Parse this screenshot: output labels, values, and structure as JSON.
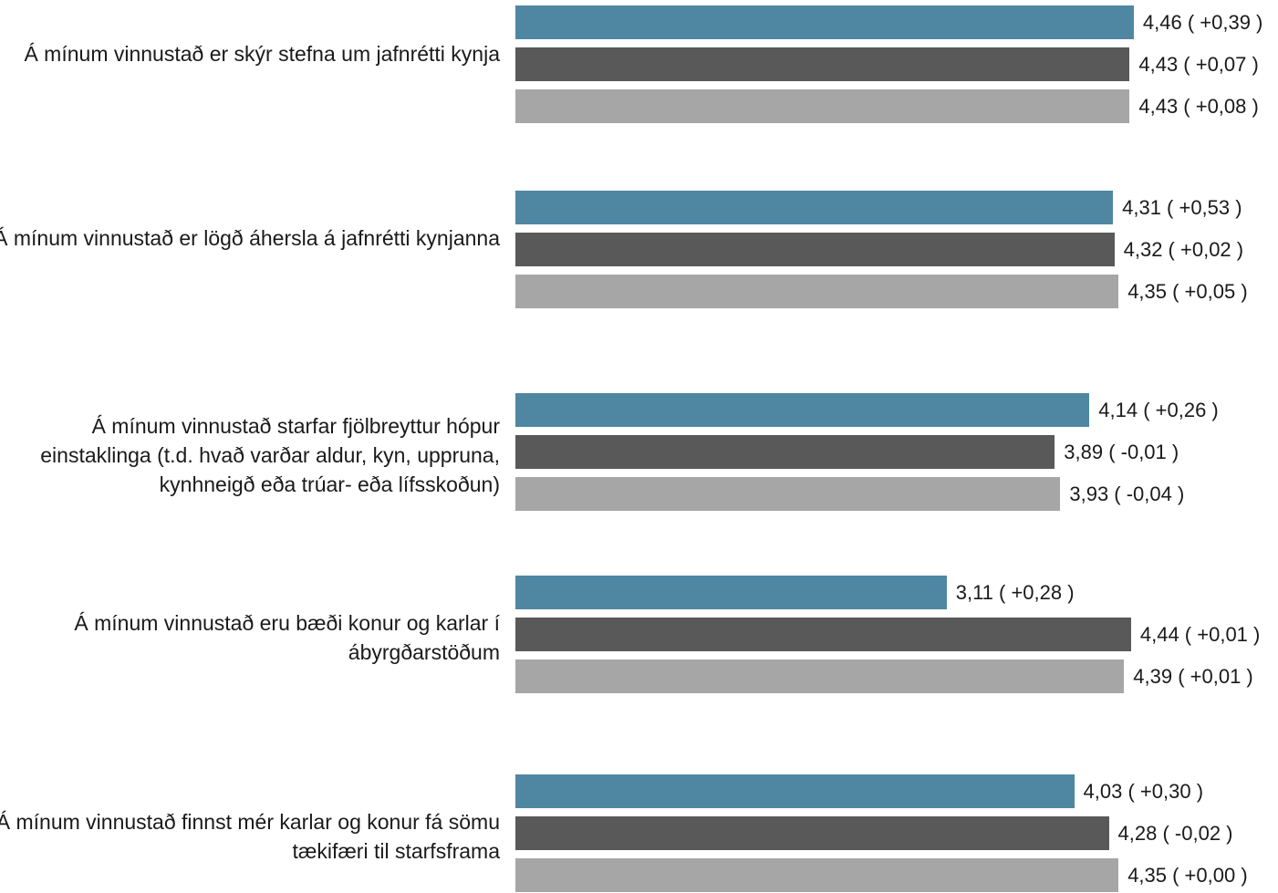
{
  "chart_data": {
    "type": "bar",
    "orientation": "horizontal",
    "title": "",
    "xlabel": "",
    "ylabel": "",
    "xlim": [
      0,
      4.86
    ],
    "grid": false,
    "legend": "none",
    "categories": [
      "Á mínum vinnustað er skýr stefna um jafnrétti kynja",
      "Á mínum vinnustað er lögð áhersla á jafnrétti kynjanna",
      "Á mínum vinnustað starfar fjölbreyttur hópur einstaklinga (t.d. hvað varðar aldur, kyn, uppruna, kynhneigð eða trúar- eða lífsskoðun)",
      "Á mínum vinnustað eru bæði konur og karlar í ábyrgðarstöðum",
      "Á mínum vinnustað finnst mér karlar og konur fá sömu tækifæri til starfsframa"
    ],
    "series": [
      {
        "color": "#4f87a3",
        "values": [
          4.46,
          4.31,
          4.14,
          3.11,
          4.03
        ],
        "labels": [
          "4,46 ( +0,39 )",
          "4,31 ( +0,53 )",
          "4,14 ( +0,26 )",
          "3,11 ( +0,28 )",
          "4,03 ( +0,30 )"
        ]
      },
      {
        "color": "#595959",
        "values": [
          4.43,
          4.32,
          3.89,
          4.44,
          4.28
        ],
        "labels": [
          "4,43 ( +0,07 )",
          "4,32 ( +0,02 )",
          "3,89 ( -0,01 )",
          "4,44 ( +0,01 )",
          "4,28 ( -0,02 )"
        ]
      },
      {
        "color": "#a6a6a6",
        "values": [
          4.43,
          4.35,
          3.93,
          4.39,
          4.35
        ],
        "labels": [
          "4,43 ( +0,08 )",
          "4,35 ( +0,05 )",
          "3,93 ( -0,04 )",
          "4,39 ( +0,01 )",
          "4,35 ( +0,00 )"
        ]
      }
    ]
  }
}
